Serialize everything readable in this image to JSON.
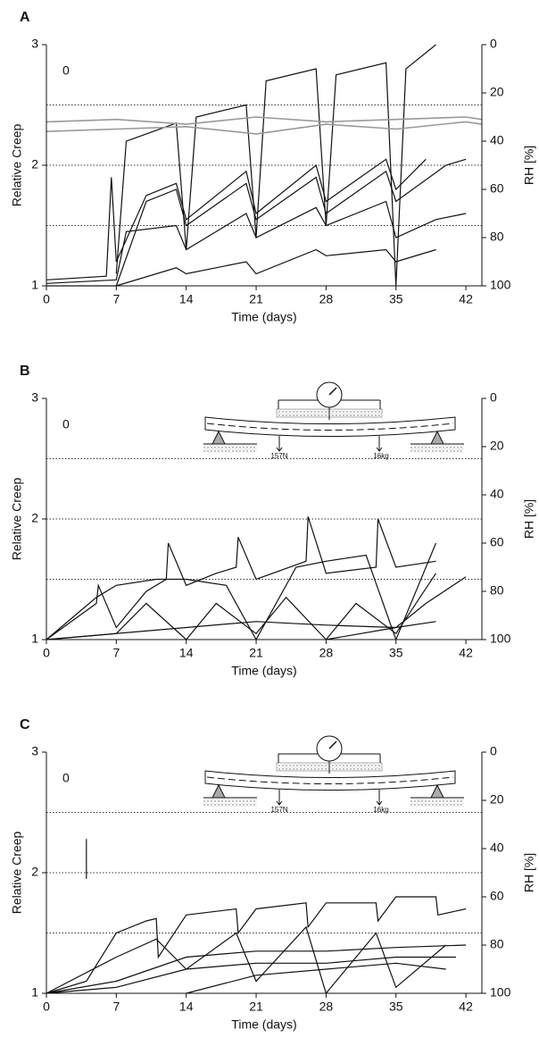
{
  "chart_data": [
    {
      "type": "line",
      "panel": "A",
      "annotation": "0",
      "xlabel": "Time (days)",
      "ylabel": "Relative Creep",
      "y2label": "RH [%]",
      "xlim": [
        0,
        43.6
      ],
      "xticks": [
        0,
        7,
        14,
        21,
        28,
        35,
        42
      ],
      "ylim": [
        1,
        3
      ],
      "yticks": [
        1,
        2,
        3
      ],
      "y2lim": [
        100,
        0
      ],
      "y2ticks": [
        0,
        20,
        40,
        60,
        80,
        100
      ],
      "reference_lines": [
        1.5,
        2,
        2.5
      ],
      "series": [
        {
          "color": "#111111",
          "x": [
            0,
            6,
            6.5,
            7,
            10,
            13,
            14,
            20,
            21,
            27,
            28,
            34,
            35,
            38
          ],
          "values": [
            1.05,
            1.08,
            1.9,
            1.2,
            1.75,
            1.85,
            1.55,
            1.95,
            1.6,
            2.0,
            1.7,
            2.05,
            1.8,
            2.05
          ]
        },
        {
          "color": "#111111",
          "x": [
            7,
            8,
            13,
            14,
            15,
            20,
            21,
            22,
            27,
            28,
            29,
            34,
            35,
            36,
            39
          ],
          "values": [
            1.1,
            2.2,
            2.35,
            1.3,
            2.4,
            2.5,
            1.4,
            2.7,
            2.8,
            1.5,
            2.75,
            2.85,
            1.0,
            2.8,
            3.0
          ]
        },
        {
          "color": "#111111",
          "x": [
            0,
            7,
            8,
            13,
            14,
            20,
            21,
            27,
            28,
            34,
            35,
            39,
            42
          ],
          "values": [
            1.02,
            1.05,
            1.45,
            1.5,
            1.3,
            1.6,
            1.4,
            1.65,
            1.5,
            1.7,
            1.4,
            1.55,
            1.6
          ]
        },
        {
          "color": "#111111",
          "x": [
            7,
            13,
            14,
            20,
            21,
            27,
            28,
            34,
            35,
            39
          ],
          "values": [
            1.0,
            1.15,
            1.1,
            1.2,
            1.1,
            1.3,
            1.25,
            1.3,
            1.2,
            1.3
          ]
        },
        {
          "color": "#111111",
          "x": [
            0,
            7,
            10,
            13,
            14,
            20,
            21,
            27,
            28,
            34,
            35,
            40,
            42
          ],
          "values": [
            1.0,
            1.0,
            1.7,
            1.8,
            1.5,
            1.85,
            1.55,
            1.9,
            1.6,
            1.95,
            1.7,
            2.0,
            2.05
          ]
        },
        {
          "color": "#999999",
          "axis": "y2",
          "x": [
            0,
            7,
            14,
            21,
            28,
            35,
            42,
            43.6
          ],
          "values": [
            32,
            31,
            33,
            30,
            32,
            31,
            30,
            31
          ]
        },
        {
          "color": "#999999",
          "axis": "y2",
          "x": [
            0,
            7,
            14,
            21,
            28,
            35,
            42,
            43.6
          ],
          "values": [
            36,
            35,
            34,
            37,
            33,
            35,
            32,
            33
          ]
        }
      ]
    },
    {
      "type": "line",
      "panel": "B",
      "annotation": "0",
      "xlabel": "Time (days)",
      "ylabel": "Relative Creep",
      "y2label": "RH [%]",
      "inset_labels": [
        "157N",
        "16kg"
      ],
      "xlim": [
        0,
        43.6
      ],
      "xticks": [
        0,
        7,
        14,
        21,
        28,
        35,
        42
      ],
      "ylim": [
        1,
        3
      ],
      "yticks": [
        1,
        2,
        3
      ],
      "y2lim": [
        100,
        0
      ],
      "y2ticks": [
        0,
        20,
        40,
        60,
        80,
        100
      ],
      "reference_lines": [
        1.5,
        2,
        2.5
      ],
      "series": [
        {
          "color": "#111111",
          "x": [
            0,
            5,
            5.2,
            7,
            10,
            12,
            12.2,
            14,
            17,
            19,
            19.2,
            21,
            26,
            26.2,
            28,
            33,
            33.2,
            35,
            39
          ],
          "values": [
            1.0,
            1.3,
            1.45,
            1.1,
            1.4,
            1.5,
            1.8,
            1.45,
            1.55,
            1.6,
            1.85,
            1.5,
            1.65,
            2.02,
            1.55,
            1.6,
            2.0,
            1.6,
            1.65
          ]
        },
        {
          "color": "#111111",
          "x": [
            0,
            5,
            7,
            11,
            14,
            18,
            21,
            25,
            28,
            32,
            35,
            39
          ],
          "values": [
            1.0,
            1.35,
            1.45,
            1.5,
            1.5,
            1.45,
            1.0,
            1.6,
            1.65,
            1.7,
            1.0,
            1.8
          ]
        },
        {
          "color": "#111111",
          "x": [
            0,
            7,
            10,
            14,
            17,
            21,
            24,
            28,
            31,
            35,
            39
          ],
          "values": [
            1.0,
            1.05,
            1.3,
            1.0,
            1.3,
            1.05,
            1.35,
            1.0,
            1.3,
            1.05,
            1.55
          ]
        },
        {
          "color": "#111111",
          "x": [
            0,
            14,
            21,
            28,
            35,
            39
          ],
          "values": [
            1.0,
            1.1,
            1.15,
            1.12,
            1.1,
            1.15
          ]
        },
        {
          "color": "#111111",
          "x": [
            28,
            35,
            38,
            42
          ],
          "values": [
            1.0,
            1.1,
            1.3,
            1.52
          ]
        }
      ]
    },
    {
      "type": "line",
      "panel": "C",
      "annotation": "0",
      "xlabel": "Time (days)",
      "ylabel": "Relative Creep",
      "y2label": "RH [%]",
      "inset_labels": [
        "157N",
        "16kg"
      ],
      "xlim": [
        0,
        43.6
      ],
      "xticks": [
        0,
        7,
        14,
        21,
        28,
        35,
        42
      ],
      "ylim": [
        1,
        3
      ],
      "yticks": [
        1,
        2,
        3
      ],
      "y2lim": [
        100,
        0
      ],
      "y2ticks": [
        0,
        20,
        40,
        60,
        80,
        100
      ],
      "reference_lines": [
        1.5,
        2,
        2.5
      ],
      "series": [
        {
          "color": "#111111",
          "x": [
            0,
            4,
            7,
            10,
            11,
            11.2,
            14,
            19,
            19.2,
            21,
            26,
            26.2,
            28,
            33,
            33.2,
            35,
            39,
            39.2,
            42
          ],
          "values": [
            1.0,
            1.1,
            1.5,
            1.6,
            1.62,
            1.3,
            1.65,
            1.7,
            1.5,
            1.7,
            1.75,
            1.55,
            1.75,
            1.75,
            1.6,
            1.8,
            1.8,
            1.65,
            1.7
          ]
        },
        {
          "color": "#111111",
          "x": [
            0,
            7,
            11,
            14,
            19,
            21,
            26,
            28,
            33,
            35,
            40
          ],
          "values": [
            1.0,
            1.3,
            1.45,
            1.2,
            1.5,
            1.1,
            1.55,
            1.0,
            1.5,
            1.05,
            1.4
          ]
        },
        {
          "color": "#111111",
          "x": [
            0,
            7,
            14,
            21,
            28,
            35,
            42
          ],
          "values": [
            1.0,
            1.1,
            1.3,
            1.35,
            1.35,
            1.38,
            1.4
          ]
        },
        {
          "color": "#111111",
          "x": [
            0,
            7,
            14,
            21,
            28,
            35,
            41
          ],
          "values": [
            1.0,
            1.05,
            1.2,
            1.25,
            1.25,
            1.3,
            1.3
          ]
        },
        {
          "color": "#111111",
          "x": [
            14,
            21,
            28,
            35,
            40
          ],
          "values": [
            1.0,
            1.15,
            1.2,
            1.25,
            1.2
          ]
        },
        {
          "color": "#111111",
          "x": [
            4,
            4
          ],
          "values": [
            1.95,
            2.28
          ]
        }
      ]
    }
  ]
}
